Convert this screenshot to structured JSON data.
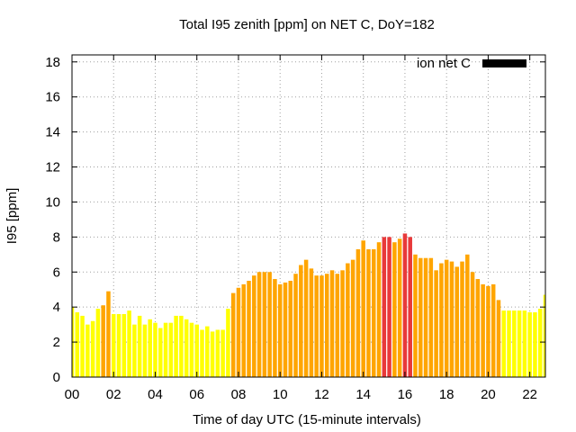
{
  "colors": {
    "yellow": "#ffff00",
    "orange": "#ffa500",
    "red": "#e8393a",
    "legend_swatch": "#000000",
    "grid": "#a0a0a0"
  },
  "chart_data": {
    "type": "bar",
    "title": "Total I95 zenith [ppm] on NET C, DoY=182",
    "xlabel": "Time of day UTC (15-minute intervals)",
    "ylabel": "I95 [ppm]",
    "xlim": [
      0,
      22.75
    ],
    "ylim": [
      0,
      18.4
    ],
    "xticks": [
      "00",
      "02",
      "04",
      "06",
      "08",
      "10",
      "12",
      "14",
      "16",
      "18",
      "20",
      "22"
    ],
    "yticks": [
      "0",
      "2",
      "4",
      "6",
      "8",
      "10",
      "12",
      "14",
      "16",
      "18"
    ],
    "grid": true,
    "legend": {
      "label": "ion net C",
      "position": "top-right"
    },
    "bar_interval_hours": 0.25,
    "x_start_hours": 0,
    "values": [
      4.0,
      3.7,
      3.5,
      3.0,
      3.2,
      3.9,
      4.1,
      4.9,
      3.6,
      3.6,
      3.6,
      3.8,
      3.0,
      3.5,
      3.0,
      3.3,
      3.1,
      2.8,
      3.1,
      3.1,
      3.5,
      3.5,
      3.3,
      3.1,
      3.0,
      2.7,
      2.9,
      2.6,
      2.7,
      2.7,
      3.9,
      4.8,
      5.1,
      5.3,
      5.5,
      5.8,
      6.0,
      6.0,
      6.0,
      5.6,
      5.3,
      5.4,
      5.5,
      5.9,
      6.4,
      6.7,
      6.2,
      5.8,
      5.8,
      5.9,
      6.1,
      5.9,
      6.1,
      6.5,
      6.7,
      7.3,
      7.8,
      7.3,
      7.3,
      7.7,
      8.0,
      8.0,
      7.7,
      7.9,
      8.2,
      8.0,
      7.0,
      6.8,
      6.8,
      6.8,
      6.1,
      6.5,
      6.7,
      6.6,
      6.3,
      6.6,
      7.0,
      6.0,
      5.6,
      5.3,
      5.2,
      5.3,
      4.4,
      3.8,
      3.8,
      3.8,
      3.8,
      3.8,
      3.7,
      3.7,
      3.9,
      4.7
    ],
    "levels": [
      "yellow",
      "yellow",
      "yellow",
      "yellow",
      "yellow",
      "yellow",
      "orange",
      "orange",
      "yellow",
      "yellow",
      "yellow",
      "yellow",
      "yellow",
      "yellow",
      "yellow",
      "yellow",
      "yellow",
      "yellow",
      "yellow",
      "yellow",
      "yellow",
      "yellow",
      "yellow",
      "yellow",
      "yellow",
      "yellow",
      "yellow",
      "yellow",
      "yellow",
      "yellow",
      "yellow",
      "orange",
      "orange",
      "orange",
      "orange",
      "orange",
      "orange",
      "orange",
      "orange",
      "orange",
      "orange",
      "orange",
      "orange",
      "orange",
      "orange",
      "orange",
      "orange",
      "orange",
      "orange",
      "orange",
      "orange",
      "orange",
      "orange",
      "orange",
      "orange",
      "orange",
      "orange",
      "orange",
      "orange",
      "orange",
      "red",
      "red",
      "orange",
      "orange",
      "red",
      "red",
      "orange",
      "orange",
      "orange",
      "orange",
      "orange",
      "orange",
      "orange",
      "orange",
      "orange",
      "orange",
      "orange",
      "orange",
      "orange",
      "orange",
      "orange",
      "orange",
      "orange",
      "yellow",
      "yellow",
      "yellow",
      "yellow",
      "yellow",
      "yellow",
      "yellow",
      "yellow",
      "yellow"
    ]
  }
}
